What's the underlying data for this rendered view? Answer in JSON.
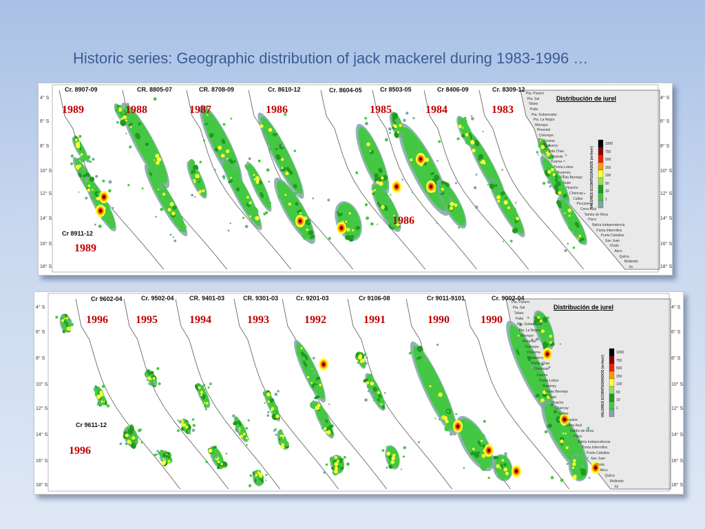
{
  "title": "Historic series: Geographic distribution of jack mackerel during 1983-1996 …",
  "colors": {
    "value_scale": [
      "#7fa6a6",
      "#44c844",
      "#1f9a1f",
      "#8fe25a",
      "#ffff33",
      "#ff9a00",
      "#ee2200",
      "#8b0000",
      "#000000"
    ]
  },
  "panels": [
    {
      "id": "top",
      "cruises": [
        "Cr. 8907-09",
        "CR. 8805-07",
        "CR. 8708-09",
        "Cr. 8610-12",
        "Cr. 8604-05",
        "Cr 8503-05",
        "Cr 8406-09",
        "Cr. 8309-12",
        "Cr 8911-12"
      ],
      "years": [
        "1989",
        "1988",
        "1987",
        "1986",
        "1985",
        "1984",
        "1983",
        "1986",
        "1989"
      ],
      "lat_left": [
        "4° S",
        "6° S",
        "8° S",
        "10° S",
        "12° S",
        "14° S",
        "16° S",
        "18° S"
      ],
      "lat_right": [
        "4° S",
        "6° S",
        "8° S",
        "10° S",
        "12° S",
        "14° S",
        "16° S",
        "18° S"
      ],
      "legend_title": "Distribución de jurel",
      "colorbar_title": "VALORES ECOINTEGRADOS (m²/mn²)",
      "colorbar_labels": [
        "1000",
        "750",
        "500",
        "250",
        "100",
        "50",
        "10",
        "1"
      ],
      "places": [
        "Pta. Pizarro",
        "Pta. Sal",
        "Talara",
        "Paita",
        "Pta. Gobernador",
        "Pta. La Negra",
        "Mórrope",
        "Pimentel",
        "Chérrepe",
        "Chicama",
        "Salaverry",
        "Punta Chao",
        "Chimbote",
        "Casma",
        "Punta Lobos",
        "Huarmey",
        "Punta Bermejo",
        "Supe",
        "Huacho",
        "Chancay",
        "Callao",
        "Pucusana",
        "Cerro Azul",
        "Tambo de Mora",
        "Pisco",
        "Bahía Independencia",
        "Punta Infiernillos",
        "Punta Caballas",
        "San Juan",
        "Chala",
        "Atico",
        "Quilca",
        "Mollendo",
        "Ilo"
      ]
    },
    {
      "id": "bottom",
      "cruises": [
        "Cr 9602-04",
        "Cr. 9502-04",
        "CR. 9401-03",
        "CR. 9301-03",
        "Cr. 9201-03",
        "Cr 9106-08",
        "Cr 9011-9101",
        "Cr. 9002-04",
        "Cr 9611-12"
      ],
      "years": [
        "1996",
        "1995",
        "1994",
        "1993",
        "1992",
        "1991",
        "1990",
        "1990",
        "1996"
      ],
      "lat_left": [
        "4° S",
        "6° S",
        "8° S",
        "10° S",
        "12° S",
        "14° S",
        "16° S",
        "18° S"
      ],
      "lat_right": [
        "4° S",
        "6° S",
        "8° S",
        "10° S",
        "12° S",
        "14° S",
        "16° S",
        "18° S"
      ],
      "legend_title": "Distribución de jurel",
      "colorbar_title": "VALORES ECOINTEGRADOS (m²/mn²)",
      "colorbar_labels": [
        "1000",
        "750",
        "500",
        "250",
        "100",
        "50",
        "10",
        "1"
      ],
      "places": [
        "Pta. Pizarro",
        "Pta. Sal",
        "Talara",
        "Paita",
        "Pta. Gobernador",
        "Pta. La Negra",
        "Mórrope",
        "Pimentel",
        "Chérrepe",
        "Chicama",
        "Salaverry",
        "Punta Chao",
        "Chimbote",
        "Casma",
        "Punta Lobos",
        "Huarmey",
        "Punta Bermejo",
        "Supe",
        "Huacho",
        "Chancay",
        "Callao",
        "Pucusana",
        "Cerro Azul",
        "Tambo de Mora",
        "Pisco",
        "Bahía Independencia",
        "Punta Infiernillos",
        "Punta Caballas",
        "San Juan",
        "Chala",
        "Atico",
        "Quilca",
        "Mollendo",
        "Ilo"
      ]
    }
  ]
}
